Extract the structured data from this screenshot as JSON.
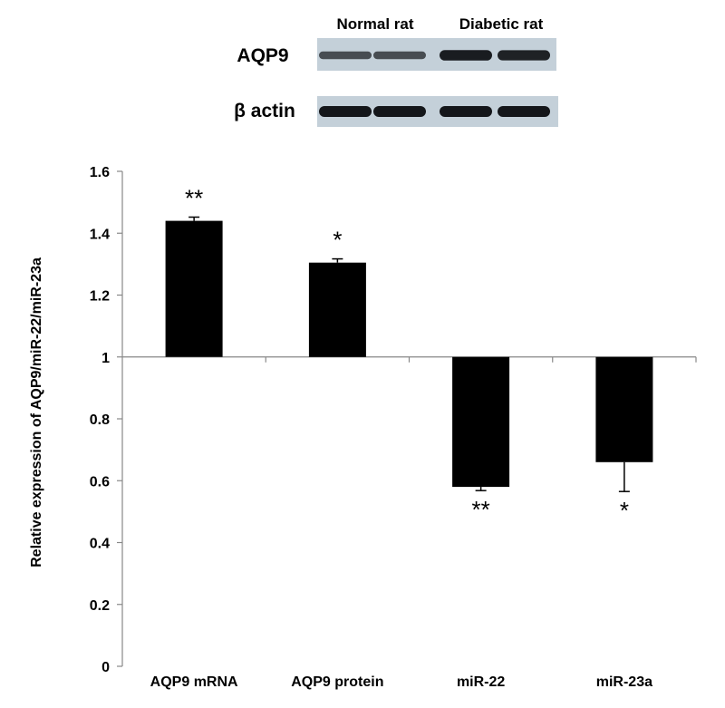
{
  "blot": {
    "group_labels": [
      "Normal rat",
      "Diabetic rat"
    ],
    "rows": [
      {
        "label": "AQP9",
        "band_intensities": [
          0.55,
          0.55,
          0.95,
          0.9
        ]
      },
      {
        "label": "β actin",
        "band_intensities": [
          1.0,
          1.0,
          1.0,
          1.0
        ]
      }
    ]
  },
  "chart_data": {
    "type": "bar",
    "title": "",
    "xlabel": "",
    "ylabel": "Relative expression of AQP9/miR-22/miR-23a",
    "categories": [
      "AQP9 mRNA",
      "AQP9 protein",
      "miR-22",
      "miR-23a"
    ],
    "values": [
      1.44,
      1.305,
      0.58,
      0.66
    ],
    "error": [
      0.012,
      0.012,
      0.012,
      0.095
    ],
    "significance": [
      "**",
      "*",
      "**",
      "*"
    ],
    "baseline": 1,
    "ylim": [
      0,
      1.6
    ],
    "yticks": [
      "0",
      "0.2",
      "0.4",
      "0.6",
      "0.8",
      "1",
      "1.2",
      "1.4",
      "1.6"
    ],
    "bar_color": "#000000",
    "grid": false,
    "legend": "none"
  }
}
